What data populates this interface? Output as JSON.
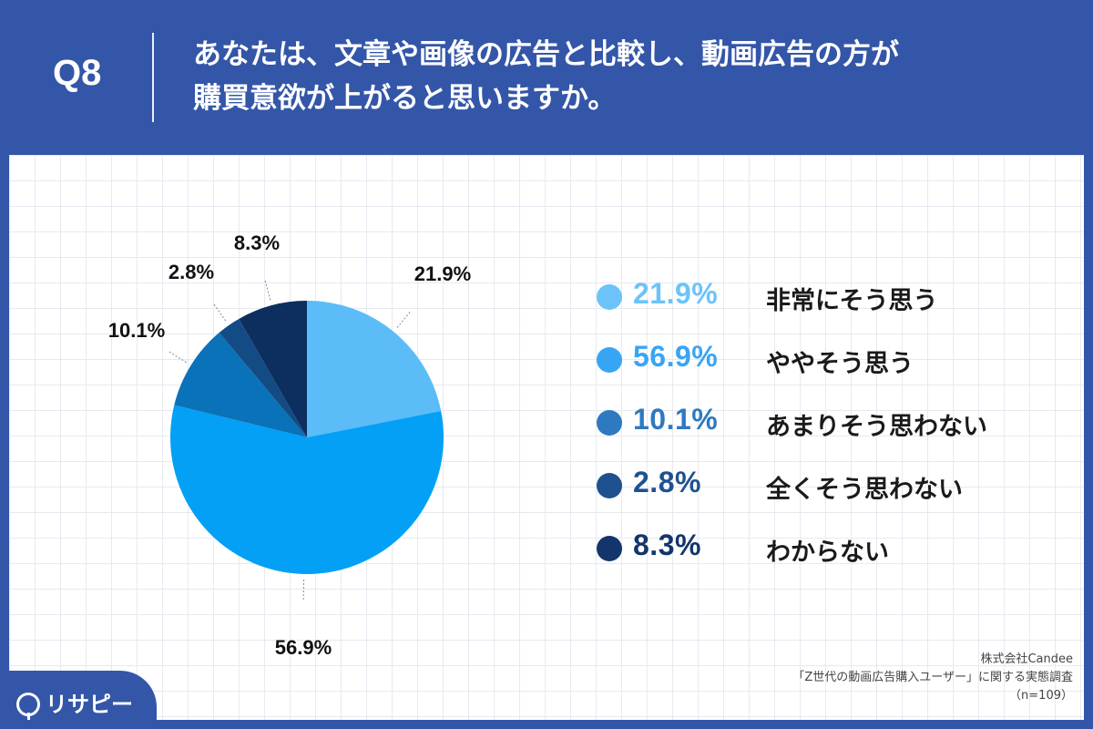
{
  "header": {
    "q_label": "Q8",
    "question_line1": "あなたは、文章や画像の広告と比較し、動画広告の方が",
    "question_line2": "購買意欲が上がると思いますか。"
  },
  "chart_data": {
    "type": "pie",
    "slices": [
      {
        "label": "非常にそう思う",
        "value": 21.9,
        "display": "21.9%",
        "color": "#5bbcf7",
        "legend_color": "#6cc3fa"
      },
      {
        "label": "ややそう思う",
        "value": 56.9,
        "display": "56.9%",
        "color": "#03a0f5",
        "legend_color": "#38a5f4"
      },
      {
        "label": "あまりそう思わない",
        "value": 10.1,
        "display": "10.1%",
        "color": "#0a72b8",
        "legend_color": "#2e79c0"
      },
      {
        "label": "全くそう思わない",
        "value": 2.8,
        "display": "2.8%",
        "color": "#134b85",
        "legend_color": "#1f5190"
      },
      {
        "label": "わからない",
        "value": 8.3,
        "display": "8.3%",
        "color": "#0d2f60",
        "legend_color": "#13356b"
      }
    ],
    "legend_position": "right"
  },
  "source": {
    "line1": "株式会社Candee",
    "line2": "「Z世代の動画広告購入ユーザー」に関する実態調査",
    "line3": "（n=109）"
  },
  "logo": {
    "text": "リサピー"
  }
}
